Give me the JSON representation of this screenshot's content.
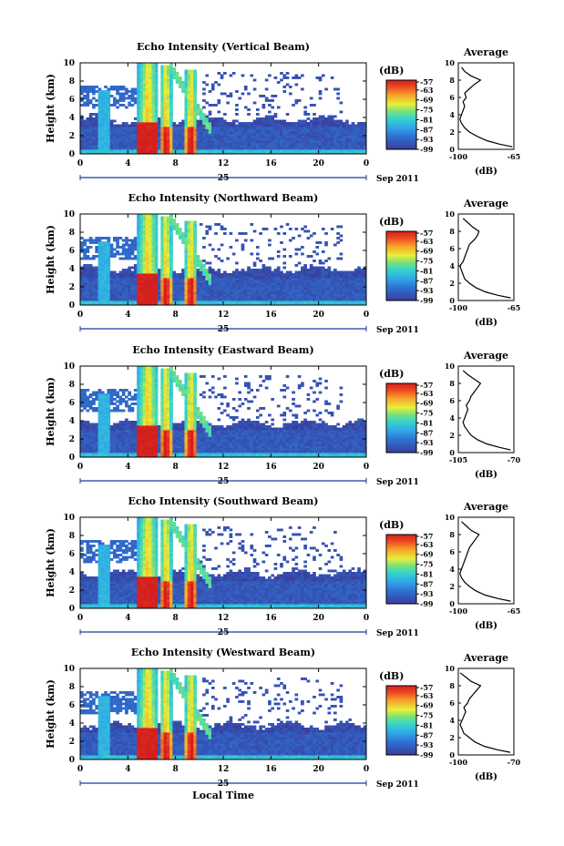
{
  "figure": {
    "xlabel": "Local Time",
    "ylabel": "Height (km)",
    "date_day": "25",
    "date_month": "Sep 2011",
    "colorbar_unit": "(dB)",
    "colorbar_ticks": [
      "-57",
      "-63",
      "-69",
      "-75",
      "-81",
      "-87",
      "-93",
      "-99"
    ],
    "profile_title": "Average",
    "profile_xlabel": "(dB)"
  },
  "chart_data": [
    {
      "type": "heatmap",
      "title": "Echo Intensity (Vertical Beam)",
      "xlabel": "",
      "ylabel": "Height (km)",
      "x_ticks": [
        "0",
        "4",
        "8",
        "12",
        "16",
        "20",
        "0"
      ],
      "y_ticks": [
        "0",
        "2",
        "4",
        "6",
        "8",
        "10"
      ],
      "xlim": [
        0,
        24
      ],
      "ylim": [
        0,
        10
      ],
      "colorbar": {
        "label": "(dB)",
        "range": [
          -99,
          -57
        ]
      },
      "features": {
        "boundary_layer_top_km": 3.8,
        "precip_hours": [
          5.7,
          7.2,
          9.3
        ],
        "precip_top_km": 10
      },
      "profile": {
        "title": "Average",
        "xlabel": "(dB)",
        "x_ticks": [
          "-100",
          "-65"
        ],
        "xlim": [
          -100,
          -65
        ],
        "points": [
          [
            0.3,
            -66
          ],
          [
            0.6,
            -74
          ],
          [
            1.0,
            -82
          ],
          [
            1.5,
            -88
          ],
          [
            2.0,
            -93
          ],
          [
            2.5,
            -96
          ],
          [
            3.0,
            -98
          ],
          [
            3.5,
            -99
          ],
          [
            4.0,
            -98
          ],
          [
            4.5,
            -97
          ],
          [
            5.0,
            -96
          ],
          [
            5.5,
            -97
          ],
          [
            6.0,
            -95
          ],
          [
            6.5,
            -96
          ],
          [
            7.0,
            -93
          ],
          [
            7.5,
            -90
          ],
          [
            8.0,
            -86
          ],
          [
            8.5,
            -92
          ],
          [
            9.0,
            -96
          ],
          [
            9.5,
            -98
          ]
        ]
      }
    },
    {
      "type": "heatmap",
      "title": "Echo Intensity (Northward Beam)",
      "xlabel": "",
      "ylabel": "Height (km)",
      "x_ticks": [
        "0",
        "4",
        "8",
        "12",
        "16",
        "20",
        "0"
      ],
      "y_ticks": [
        "0",
        "2",
        "4",
        "6",
        "8",
        "10"
      ],
      "xlim": [
        0,
        24
      ],
      "ylim": [
        0,
        10
      ],
      "colorbar": {
        "label": "(dB)",
        "range": [
          -99,
          -57
        ]
      },
      "features": {
        "boundary_layer_top_km": 4.0,
        "precip_hours": [
          5.7,
          7.2,
          9.3
        ],
        "precip_top_km": 10
      },
      "profile": {
        "title": "Average",
        "xlabel": "(dB)",
        "x_ticks": [
          "-100",
          "-65"
        ],
        "xlim": [
          -100,
          -65
        ],
        "points": [
          [
            0.3,
            -67
          ],
          [
            0.6,
            -75
          ],
          [
            1.0,
            -83
          ],
          [
            1.5,
            -89
          ],
          [
            2.0,
            -93
          ],
          [
            2.5,
            -96
          ],
          [
            3.0,
            -97
          ],
          [
            3.5,
            -98
          ],
          [
            4.0,
            -99
          ],
          [
            4.5,
            -97
          ],
          [
            5.0,
            -96
          ],
          [
            5.5,
            -95
          ],
          [
            6.0,
            -94
          ],
          [
            6.5,
            -93
          ],
          [
            7.0,
            -90
          ],
          [
            7.5,
            -88
          ],
          [
            8.0,
            -87
          ],
          [
            8.5,
            -91
          ],
          [
            9.0,
            -94
          ],
          [
            9.5,
            -97
          ]
        ]
      }
    },
    {
      "type": "heatmap",
      "title": "Echo Intensity (Eastward Beam)",
      "xlabel": "",
      "ylabel": "Height (km)",
      "x_ticks": [
        "0",
        "4",
        "8",
        "12",
        "16",
        "20",
        "0"
      ],
      "y_ticks": [
        "0",
        "2",
        "4",
        "6",
        "8",
        "10"
      ],
      "xlim": [
        0,
        24
      ],
      "ylim": [
        0,
        10
      ],
      "colorbar": {
        "label": "(dB)",
        "range": [
          -99,
          -57
        ]
      },
      "features": {
        "boundary_layer_top_km": 3.8,
        "precip_hours": [
          5.7,
          7.2,
          9.3
        ],
        "precip_top_km": 10
      },
      "profile": {
        "title": "Average",
        "xlabel": "(dB)",
        "x_ticks": [
          "-105",
          "-70"
        ],
        "xlim": [
          -105,
          -70
        ],
        "points": [
          [
            0.3,
            -72
          ],
          [
            0.6,
            -79
          ],
          [
            1.0,
            -87
          ],
          [
            1.5,
            -93
          ],
          [
            2.0,
            -97
          ],
          [
            2.5,
            -99
          ],
          [
            3.0,
            -101
          ],
          [
            3.5,
            -102
          ],
          [
            4.0,
            -101
          ],
          [
            4.5,
            -100
          ],
          [
            5.0,
            -99
          ],
          [
            5.5,
            -100
          ],
          [
            6.0,
            -98
          ],
          [
            6.5,
            -97
          ],
          [
            7.0,
            -95
          ],
          [
            7.5,
            -93
          ],
          [
            8.0,
            -91
          ],
          [
            8.5,
            -95
          ],
          [
            9.0,
            -99
          ],
          [
            9.5,
            -102
          ]
        ]
      }
    },
    {
      "type": "heatmap",
      "title": "Echo Intensity (Southward Beam)",
      "xlabel": "",
      "ylabel": "Height (km)",
      "x_ticks": [
        "0",
        "4",
        "8",
        "12",
        "16",
        "20",
        "0"
      ],
      "y_ticks": [
        "0",
        "2",
        "4",
        "6",
        "8",
        "10"
      ],
      "xlim": [
        0,
        24
      ],
      "ylim": [
        0,
        10
      ],
      "colorbar": {
        "label": "(dB)",
        "range": [
          -99,
          -57
        ]
      },
      "features": {
        "boundary_layer_top_km": 3.9,
        "precip_hours": [
          5.7,
          7.2,
          9.3
        ],
        "precip_top_km": 10
      },
      "profile": {
        "title": "Average",
        "xlabel": "(dB)",
        "x_ticks": [
          "-100",
          "-65"
        ],
        "xlim": [
          -100,
          -65
        ],
        "points": [
          [
            0.3,
            -67
          ],
          [
            0.6,
            -75
          ],
          [
            1.0,
            -83
          ],
          [
            1.5,
            -89
          ],
          [
            2.0,
            -93
          ],
          [
            2.5,
            -96
          ],
          [
            3.0,
            -98
          ],
          [
            3.5,
            -99
          ],
          [
            4.0,
            -98
          ],
          [
            4.5,
            -97
          ],
          [
            5.0,
            -96
          ],
          [
            5.5,
            -95
          ],
          [
            6.0,
            -94
          ],
          [
            6.5,
            -93
          ],
          [
            7.0,
            -91
          ],
          [
            7.5,
            -89
          ],
          [
            8.0,
            -87
          ],
          [
            8.5,
            -92
          ],
          [
            9.0,
            -95
          ],
          [
            9.5,
            -98
          ]
        ]
      }
    },
    {
      "type": "heatmap",
      "title": "Echo Intensity (Westward Beam)",
      "xlabel": "Local Time",
      "ylabel": "Height (km)",
      "x_ticks": [
        "0",
        "4",
        "8",
        "12",
        "16",
        "20",
        "0"
      ],
      "y_ticks": [
        "0",
        "2",
        "4",
        "6",
        "8",
        "10"
      ],
      "xlim": [
        0,
        24
      ],
      "ylim": [
        0,
        10
      ],
      "colorbar": {
        "label": "(dB)",
        "range": [
          -99,
          -57
        ]
      },
      "features": {
        "boundary_layer_top_km": 3.8,
        "precip_hours": [
          5.7,
          7.2,
          9.3
        ],
        "precip_top_km": 10
      },
      "profile": {
        "title": "Average",
        "xlabel": "(dB)",
        "x_ticks": [
          "-100",
          "-70"
        ],
        "xlim": [
          -100,
          -70
        ],
        "points": [
          [
            0.3,
            -72
          ],
          [
            0.6,
            -79
          ],
          [
            1.0,
            -86
          ],
          [
            1.5,
            -91
          ],
          [
            2.0,
            -94
          ],
          [
            2.5,
            -97
          ],
          [
            3.0,
            -98
          ],
          [
            3.5,
            -99
          ],
          [
            4.0,
            -98
          ],
          [
            4.5,
            -97
          ],
          [
            5.0,
            -96
          ],
          [
            5.5,
            -97
          ],
          [
            6.0,
            -95
          ],
          [
            6.5,
            -94
          ],
          [
            7.0,
            -92
          ],
          [
            7.5,
            -90
          ],
          [
            8.0,
            -88
          ],
          [
            8.5,
            -93
          ],
          [
            9.0,
            -96
          ],
          [
            9.5,
            -99
          ]
        ]
      }
    }
  ]
}
